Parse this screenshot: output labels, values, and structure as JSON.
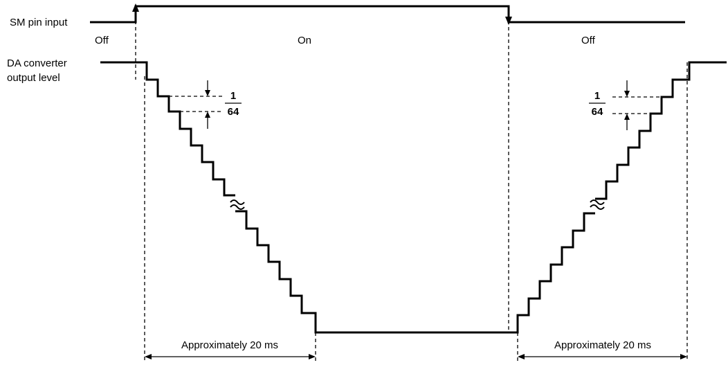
{
  "labels": {
    "sm_pin_input": "SM pin input",
    "da_line1": "DA converter",
    "da_line2": "output level",
    "state_off_left": "Off",
    "state_on": "On",
    "state_off_right": "Off",
    "step_numerator": "1",
    "step_denominator": "64",
    "duration_left": "Approximately 20 ms",
    "duration_right": "Approximately 20 ms"
  }
}
